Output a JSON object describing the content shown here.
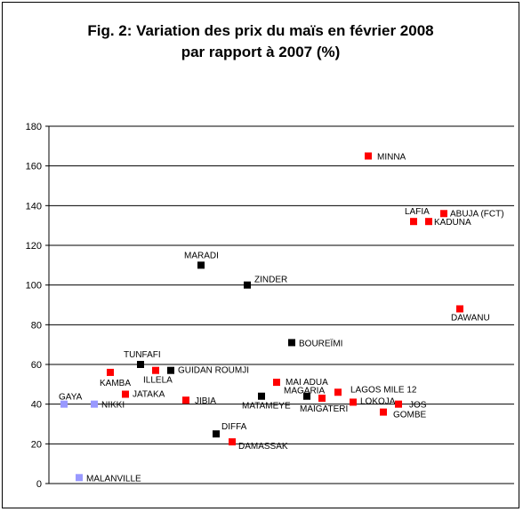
{
  "title": {
    "line1": "Fig. 2:  Variation des prix du maïs en février 2008",
    "line2": "par rapport à 2007 (%)"
  },
  "chart_data": {
    "type": "scatter",
    "title": "Fig. 2:  Variation des prix du maïs en février 2008 par rapport à 2007 (%)",
    "xlabel": "",
    "ylabel": "",
    "ylim": [
      0,
      180
    ],
    "y_ticks": [
      "0",
      "20",
      "40",
      "60",
      "80",
      "100",
      "120",
      "140",
      "160",
      "180"
    ],
    "grid": "horizontal",
    "legend": "none",
    "groups": [
      {
        "name": "",
        "color": "#9999FF"
      },
      {
        "name": "",
        "color": "#000000"
      },
      {
        "name": "",
        "color": "#FF0000"
      }
    ],
    "points": [
      {
        "label": "GAYA",
        "x": 1,
        "y": 40,
        "group": 0
      },
      {
        "label": "MALANVILLE",
        "x": 2,
        "y": 3,
        "group": 0
      },
      {
        "label": "NIKKI",
        "x": 3,
        "y": 40,
        "group": 0
      },
      {
        "label": "KAMBA",
        "x": 4,
        "y": 56,
        "group": 2
      },
      {
        "label": "JATAKA",
        "x": 5,
        "y": 45,
        "group": 2
      },
      {
        "label": "TUNFAFI",
        "x": 6,
        "y": 60,
        "group": 1
      },
      {
        "label": "ILLELA",
        "x": 7,
        "y": 57,
        "group": 2
      },
      {
        "label": "GUIDAN ROUMJI",
        "x": 8,
        "y": 57,
        "group": 1
      },
      {
        "label": "JIBIA",
        "x": 9,
        "y": 42,
        "group": 2
      },
      {
        "label": "MARADI",
        "x": 10,
        "y": 110,
        "group": 1
      },
      {
        "label": "DIFFA",
        "x": 11,
        "y": 25,
        "group": 1
      },
      {
        "label": "DAMASSAK",
        "x": 12,
        "y": 21,
        "group": 2
      },
      {
        "label": "ZINDER",
        "x": 13,
        "y": 100,
        "group": 1
      },
      {
        "label": "MATAMEYE",
        "x": 14,
        "y": 44,
        "group": 1
      },
      {
        "label": "MAI ADUA",
        "x": 15,
        "y": 51,
        "group": 2
      },
      {
        "label": "BOUREÏMI",
        "x": 16,
        "y": 71,
        "group": 1
      },
      {
        "label": "MAGARIA",
        "x": 17,
        "y": 44,
        "group": 1
      },
      {
        "label": "MAÏGATERI",
        "x": 18,
        "y": 43,
        "group": 2
      },
      {
        "label": "LAGOS MILE 12",
        "x": 19,
        "y": 46,
        "group": 2
      },
      {
        "label": "LOKOJA",
        "x": 20,
        "y": 41,
        "group": 2
      },
      {
        "label": "MINNA",
        "x": 21,
        "y": 165,
        "group": 2
      },
      {
        "label": "GOMBE",
        "x": 22,
        "y": 36,
        "group": 2
      },
      {
        "label": "JOS",
        "x": 23,
        "y": 40,
        "group": 2
      },
      {
        "label": "LAFIA",
        "x": 24,
        "y": 132,
        "group": 2
      },
      {
        "label": "KADUNA",
        "x": 25,
        "y": 132,
        "group": 2
      },
      {
        "label": "ABUJA (FCT)",
        "x": 26,
        "y": 136,
        "group": 2
      },
      {
        "label": "DAWANU",
        "x": 27,
        "y": 88,
        "group": 2
      }
    ]
  }
}
